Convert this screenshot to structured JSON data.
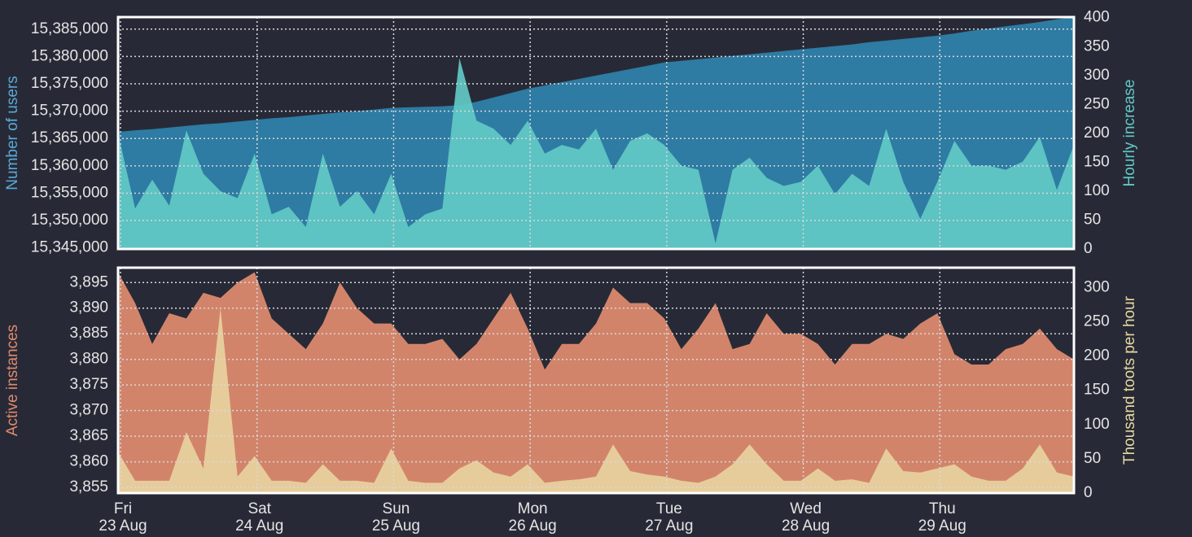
{
  "chart_data": [
    {
      "type": "area",
      "ylabel": "Number of users",
      "y2label": "Hourly increase",
      "ylim": [
        15344800,
        15387200
      ],
      "yticks": [
        {
          "value": 15345000,
          "label": "15,345,000"
        },
        {
          "value": 15350000,
          "label": "15,350,000"
        },
        {
          "value": 15355000,
          "label": "15,355,000"
        },
        {
          "value": 15360000,
          "label": "15,360,000"
        },
        {
          "value": 15365000,
          "label": "15,365,000"
        },
        {
          "value": 15370000,
          "label": "15,370,000"
        },
        {
          "value": 15375000,
          "label": "15,375,000"
        },
        {
          "value": 15380000,
          "label": "15,380,000"
        },
        {
          "value": 15385000,
          "label": "15,385,000"
        }
      ],
      "y2lim": [
        0,
        401
      ],
      "y2ticks": [
        0,
        50,
        100,
        150,
        200,
        250,
        300,
        350,
        400
      ],
      "grid": true,
      "series": [
        {
          "color": "#2e7ba3",
          "axis": "y",
          "values": [
            15366200,
            15366500,
            15366700,
            15367000,
            15367300,
            15367600,
            15367800,
            15368100,
            15368400,
            15368700,
            15368900,
            15369200,
            15369500,
            15369800,
            15370000,
            15370300,
            15370600,
            15370700,
            15370800,
            15370900,
            15371100,
            15371700,
            15372500,
            15373300,
            15374100,
            15374700,
            15375300,
            15375900,
            15376500,
            15377100,
            15377700,
            15378300,
            15378900,
            15379200,
            15379500,
            15379800,
            15380100,
            15380400,
            15380700,
            15381000,
            15381300,
            15381600,
            15381900,
            15382200,
            15382600,
            15382900,
            15383200,
            15383500,
            15383800,
            15384200,
            15384700,
            15385100,
            15385500,
            15385900,
            15386300,
            15386800,
            15387200
          ]
        },
        {
          "color": "#62c9c6",
          "axis": "y2",
          "values": [
            200,
            70,
            120,
            75,
            205,
            130,
            100,
            88,
            165,
            60,
            73,
            38,
            165,
            73,
            100,
            60,
            130,
            38,
            60,
            70,
            330,
            222,
            208,
            180,
            222,
            165,
            180,
            172,
            208,
            137,
            187,
            200,
            180,
            144,
            137,
            10,
            137,
            158,
            123,
            109,
            116,
            144,
            95,
            130,
            109,
            208,
            116,
            52,
            116,
            187,
            144,
            144,
            137,
            151,
            194,
            102,
            180
          ]
        }
      ]
    },
    {
      "type": "area",
      "ylabel": "Active instances",
      "y2label": "Thousand toots per hour",
      "ylim": [
        3853.9,
        3897.9
      ],
      "yticks": [
        {
          "value": 3855,
          "label": "3,855"
        },
        {
          "value": 3860,
          "label": "3,860"
        },
        {
          "value": 3865,
          "label": "3,865"
        },
        {
          "value": 3870,
          "label": "3,870"
        },
        {
          "value": 3875,
          "label": "3,875"
        },
        {
          "value": 3880,
          "label": "3,880"
        },
        {
          "value": 3885,
          "label": "3,885"
        },
        {
          "value": 3890,
          "label": "3,890"
        },
        {
          "value": 3895,
          "label": "3,895"
        }
      ],
      "y2lim": [
        0,
        329
      ],
      "y2ticks": [
        0,
        50,
        100,
        150,
        200,
        250,
        300
      ],
      "grid": true,
      "categories": [
        "Fri\n23 Aug",
        null,
        null,
        null,
        null,
        null,
        null,
        null,
        "Sat\n24 Aug",
        null,
        null,
        null,
        null,
        null,
        null,
        null,
        "Sun\n25 Aug",
        null,
        null,
        null,
        null,
        null,
        null,
        null,
        "Mon\n26 Aug",
        null,
        null,
        null,
        null,
        null,
        null,
        null,
        "Tue\n27 Aug",
        null,
        null,
        null,
        null,
        null,
        null,
        null,
        "Wed\n28 Aug",
        null,
        null,
        null,
        null,
        null,
        null,
        null,
        "Thu\n29 Aug",
        null,
        null,
        null,
        null,
        null,
        null,
        null,
        null
      ],
      "series": [
        {
          "color": "#d2846b",
          "axis": "y",
          "values": [
            3897,
            3891,
            3883,
            3889,
            3888,
            3893,
            3892,
            3895,
            3897,
            3888,
            3885,
            3882,
            3887,
            3895,
            3890,
            3887,
            3887,
            3883,
            3883,
            3884,
            3880,
            3883,
            3888,
            3893,
            3886,
            3878,
            3883,
            3883,
            3887,
            3894,
            3891,
            3891,
            3888,
            3882,
            3886,
            3891,
            3882,
            3883,
            3889,
            3885,
            3885,
            3883,
            3879,
            3883,
            3883,
            3885,
            3884,
            3887,
            3889,
            3881,
            3879,
            3879,
            3882,
            3883,
            3886,
            3882,
            3880
          ]
        },
        {
          "color": "#e8d2a0",
          "axis": "y2",
          "values": [
            60,
            18,
            18,
            18,
            89,
            36,
            270,
            24,
            54,
            18,
            18,
            15,
            42,
            18,
            18,
            15,
            65,
            18,
            15,
            15,
            36,
            48,
            30,
            24,
            42,
            15,
            18,
            20,
            24,
            71,
            32,
            27,
            24,
            18,
            15,
            24,
            42,
            71,
            42,
            18,
            18,
            36,
            18,
            20,
            15,
            65,
            32,
            30,
            36,
            42,
            24,
            18,
            18,
            36,
            71,
            30,
            24
          ]
        }
      ]
    }
  ]
}
